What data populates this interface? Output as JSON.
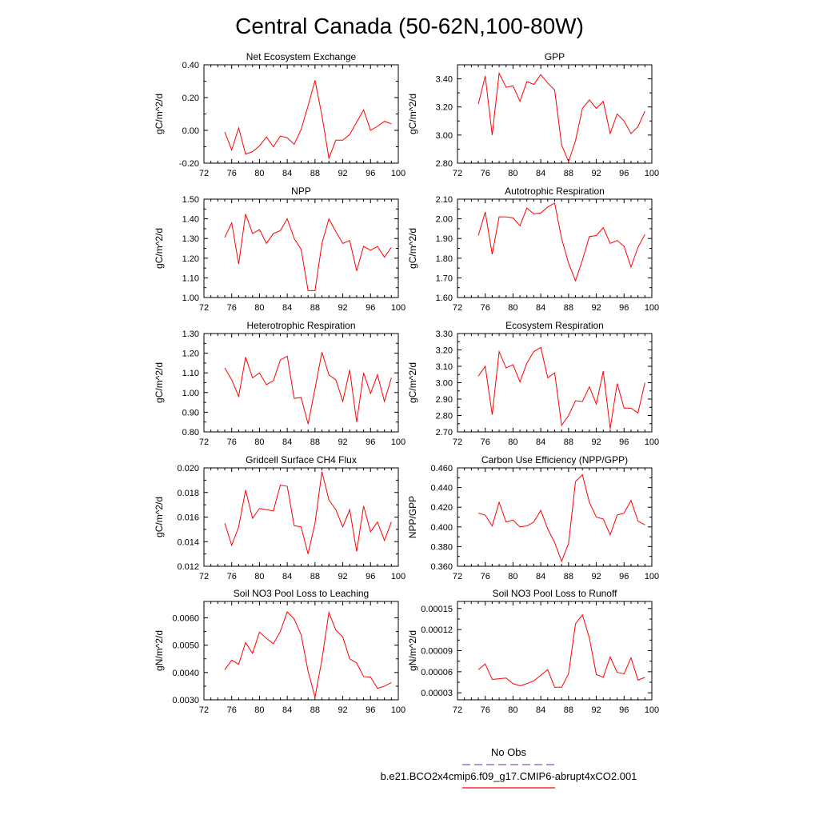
{
  "title": "Central Canada (50-62N,100-80W)",
  "legend": {
    "obs_label": "No Obs",
    "obs_color": "#6666cc",
    "case_label": "b.e21.BCO2x4cmip6.f09_g17.CMIP6-abrupt4xCO2.001",
    "case_color": "#ff0000",
    "placement": "bottom-right"
  },
  "chart_data": [
    {
      "type": "line",
      "title": "Net Ecosystem Exchange",
      "ylabel": "gC/m^2/d",
      "xlim": [
        72,
        100
      ],
      "ylim": [
        -0.2,
        0.4
      ],
      "xticks": [
        "72",
        "76",
        "80",
        "84",
        "88",
        "92",
        "96",
        "100"
      ],
      "yticks": [
        "-0.20",
        "0.00",
        "0.20",
        "0.40"
      ],
      "yticks_values": [
        -0.2,
        0,
        0.2,
        0.4
      ],
      "grid": false,
      "x": [
        75,
        76,
        77,
        78,
        79,
        80,
        81,
        82,
        83,
        84,
        85,
        86,
        87,
        88,
        89,
        90,
        91,
        92,
        93,
        94,
        95,
        96,
        97,
        98,
        99
      ],
      "series": [
        {
          "color": "#ff0000",
          "values": [
            -0.01,
            -0.12,
            0.015,
            -0.145,
            -0.13,
            -0.095,
            -0.04,
            -0.1,
            -0.035,
            -0.045,
            -0.085,
            0.005,
            0.15,
            0.305,
            0.09,
            -0.17,
            -0.06,
            -0.06,
            -0.025,
            0.05,
            0.125,
            0.0,
            0.025,
            0.055,
            0.04
          ]
        }
      ]
    },
    {
      "type": "line",
      "title": "GPP",
      "ylabel": "gC/m^2/d",
      "xlim": [
        72,
        100
      ],
      "ylim": [
        2.8,
        3.5
      ],
      "xticks": [
        "72",
        "76",
        "80",
        "84",
        "88",
        "92",
        "96",
        "100"
      ],
      "yticks": [
        "2.80",
        "3.00",
        "3.20",
        "3.40"
      ],
      "yticks_values": [
        2.8,
        3.0,
        3.2,
        3.4
      ],
      "grid": false,
      "x": [
        75,
        76,
        77,
        78,
        79,
        80,
        81,
        82,
        83,
        84,
        85,
        86,
        87,
        88,
        89,
        90,
        91,
        92,
        93,
        94,
        95,
        96,
        97,
        98,
        99
      ],
      "series": [
        {
          "color": "#ff0000",
          "values": [
            3.22,
            3.42,
            3.0,
            3.44,
            3.34,
            3.35,
            3.24,
            3.38,
            3.36,
            3.43,
            3.37,
            3.32,
            2.93,
            2.81,
            2.96,
            3.19,
            3.25,
            3.19,
            3.24,
            3.01,
            3.15,
            3.1,
            3.01,
            3.06,
            3.17
          ]
        }
      ]
    },
    {
      "type": "line",
      "title": "NPP",
      "ylabel": "gC/m^2/d",
      "xlim": [
        72,
        100
      ],
      "ylim": [
        1.0,
        1.5
      ],
      "xticks": [
        "72",
        "76",
        "80",
        "84",
        "88",
        "92",
        "96",
        "100"
      ],
      "yticks": [
        "1.00",
        "1.10",
        "1.20",
        "1.30",
        "1.40",
        "1.50"
      ],
      "yticks_values": [
        1.0,
        1.1,
        1.2,
        1.3,
        1.4,
        1.5
      ],
      "grid": false,
      "x": [
        75,
        76,
        77,
        78,
        79,
        80,
        81,
        82,
        83,
        84,
        85,
        86,
        87,
        88,
        89,
        90,
        91,
        92,
        93,
        94,
        95,
        96,
        97,
        98,
        99
      ],
      "series": [
        {
          "color": "#ff0000",
          "values": [
            1.305,
            1.38,
            1.17,
            1.425,
            1.325,
            1.345,
            1.275,
            1.325,
            1.34,
            1.4,
            1.3,
            1.245,
            1.035,
            1.035,
            1.275,
            1.4,
            1.335,
            1.275,
            1.29,
            1.135,
            1.26,
            1.24,
            1.26,
            1.205,
            1.255
          ]
        }
      ]
    },
    {
      "type": "line",
      "title": "Autotrophic Respiration",
      "ylabel": "gC/m^2/d",
      "xlim": [
        72,
        100
      ],
      "ylim": [
        1.6,
        2.1
      ],
      "xticks": [
        "72",
        "76",
        "80",
        "84",
        "88",
        "92",
        "96",
        "100"
      ],
      "yticks": [
        "1.60",
        "1.70",
        "1.80",
        "1.90",
        "2.00",
        "2.10"
      ],
      "yticks_values": [
        1.6,
        1.7,
        1.8,
        1.9,
        2.0,
        2.1
      ],
      "grid": false,
      "x": [
        75,
        76,
        77,
        78,
        79,
        80,
        81,
        82,
        83,
        84,
        85,
        86,
        87,
        88,
        89,
        90,
        91,
        92,
        93,
        94,
        95,
        96,
        97,
        98,
        99
      ],
      "series": [
        {
          "color": "#ff0000",
          "values": [
            1.915,
            2.035,
            1.82,
            2.01,
            2.01,
            2.005,
            1.965,
            2.055,
            2.025,
            2.03,
            2.06,
            2.08,
            1.9,
            1.775,
            1.685,
            1.79,
            1.91,
            1.915,
            1.955,
            1.875,
            1.89,
            1.86,
            1.755,
            1.855,
            1.92
          ]
        }
      ]
    },
    {
      "type": "line",
      "title": "Heterotrophic Respiration",
      "ylabel": "gC/m^2/d",
      "xlim": [
        72,
        100
      ],
      "ylim": [
        0.8,
        1.3
      ],
      "xticks": [
        "72",
        "76",
        "80",
        "84",
        "88",
        "92",
        "96",
        "100"
      ],
      "yticks": [
        "0.80",
        "0.90",
        "1.00",
        "1.10",
        "1.20",
        "1.30"
      ],
      "yticks_values": [
        0.8,
        0.9,
        1.0,
        1.1,
        1.2,
        1.3
      ],
      "grid": false,
      "x": [
        75,
        76,
        77,
        78,
        79,
        80,
        81,
        82,
        83,
        84,
        85,
        86,
        87,
        88,
        89,
        90,
        91,
        92,
        93,
        94,
        95,
        96,
        97,
        98,
        99
      ],
      "series": [
        {
          "color": "#ff0000",
          "values": [
            1.125,
            1.065,
            0.98,
            1.18,
            1.075,
            1.1,
            1.04,
            1.06,
            1.165,
            1.185,
            0.97,
            0.975,
            0.84,
            1.02,
            1.205,
            1.09,
            1.065,
            0.955,
            1.115,
            0.85,
            1.1,
            0.995,
            1.09,
            0.955,
            1.075
          ]
        }
      ]
    },
    {
      "type": "line",
      "title": "Ecosystem Respiration",
      "ylabel": "gC/m^2/d",
      "xlim": [
        72,
        100
      ],
      "ylim": [
        2.7,
        3.3
      ],
      "xticks": [
        "72",
        "76",
        "80",
        "84",
        "88",
        "92",
        "96",
        "100"
      ],
      "yticks": [
        "2.70",
        "2.80",
        "2.90",
        "3.00",
        "3.10",
        "3.20",
        "3.30"
      ],
      "yticks_values": [
        2.7,
        2.8,
        2.9,
        3.0,
        3.1,
        3.2,
        3.3
      ],
      "grid": false,
      "x": [
        75,
        76,
        77,
        78,
        79,
        80,
        81,
        82,
        83,
        84,
        85,
        86,
        87,
        88,
        89,
        90,
        91,
        92,
        93,
        94,
        95,
        96,
        97,
        98,
        99
      ],
      "series": [
        {
          "color": "#ff0000",
          "values": [
            3.04,
            3.1,
            2.805,
            3.19,
            3.09,
            3.11,
            3.005,
            3.12,
            3.19,
            3.215,
            3.03,
            3.06,
            2.74,
            2.8,
            2.89,
            2.885,
            2.975,
            2.87,
            3.07,
            2.72,
            2.995,
            2.845,
            2.845,
            2.815,
            3.0
          ]
        }
      ]
    },
    {
      "type": "line",
      "title": "Gridcell Surface CH4 Flux",
      "ylabel": "gC/m^2/d",
      "xlim": [
        72,
        100
      ],
      "ylim": [
        0.012,
        0.02
      ],
      "xticks": [
        "72",
        "76",
        "80",
        "84",
        "88",
        "92",
        "96",
        "100"
      ],
      "yticks": [
        "0.012",
        "0.014",
        "0.016",
        "0.018",
        "0.020"
      ],
      "yticks_values": [
        0.012,
        0.014,
        0.016,
        0.018,
        0.02
      ],
      "grid": false,
      "x": [
        75,
        76,
        77,
        78,
        79,
        80,
        81,
        82,
        83,
        84,
        85,
        86,
        87,
        88,
        89,
        90,
        91,
        92,
        93,
        94,
        95,
        96,
        97,
        98,
        99
      ],
      "series": [
        {
          "color": "#ff0000",
          "values": [
            0.0155,
            0.0137,
            0.0152,
            0.0182,
            0.0159,
            0.0167,
            0.0166,
            0.0165,
            0.0186,
            0.0185,
            0.0153,
            0.0152,
            0.013,
            0.0155,
            0.0197,
            0.0174,
            0.0166,
            0.0152,
            0.0166,
            0.0132,
            0.0169,
            0.0148,
            0.0156,
            0.0141,
            0.0156
          ]
        }
      ]
    },
    {
      "type": "line",
      "title": "Carbon Use Efficiency (NPP/GPP)",
      "ylabel": "NPP/GPP",
      "xlim": [
        72,
        100
      ],
      "ylim": [
        0.36,
        0.46
      ],
      "xticks": [
        "72",
        "76",
        "80",
        "84",
        "88",
        "92",
        "96",
        "100"
      ],
      "yticks": [
        "0.360",
        "0.380",
        "0.400",
        "0.420",
        "0.440",
        "0.460"
      ],
      "yticks_values": [
        0.36,
        0.38,
        0.4,
        0.42,
        0.44,
        0.46
      ],
      "grid": false,
      "x": [
        75,
        76,
        77,
        78,
        79,
        80,
        81,
        82,
        83,
        84,
        85,
        86,
        87,
        88,
        89,
        90,
        91,
        92,
        93,
        94,
        95,
        96,
        97,
        98,
        99
      ],
      "series": [
        {
          "color": "#ff0000",
          "values": [
            0.414,
            0.412,
            0.401,
            0.425,
            0.405,
            0.407,
            0.4,
            0.401,
            0.405,
            0.417,
            0.398,
            0.384,
            0.365,
            0.383,
            0.446,
            0.453,
            0.425,
            0.41,
            0.408,
            0.392,
            0.412,
            0.414,
            0.427,
            0.406,
            0.402
          ]
        }
      ]
    },
    {
      "type": "line",
      "title": "Soil NO3 Pool Loss to Leaching",
      "ylabel": "gN/m^2/d",
      "xlim": [
        72,
        100
      ],
      "ylim": [
        0.003,
        0.0066
      ],
      "xticks": [
        "72",
        "76",
        "80",
        "84",
        "88",
        "92",
        "96",
        "100"
      ],
      "yticks": [
        "0.0030",
        "0.0040",
        "0.0050",
        "0.0060"
      ],
      "yticks_values": [
        0.003,
        0.004,
        0.005,
        0.006
      ],
      "grid": false,
      "x": [
        75,
        76,
        77,
        78,
        79,
        80,
        81,
        82,
        83,
        84,
        85,
        86,
        87,
        88,
        89,
        90,
        91,
        92,
        93,
        94,
        95,
        96,
        97,
        98,
        99
      ],
      "series": [
        {
          "color": "#ff0000",
          "values": [
            0.0041,
            0.00445,
            0.0043,
            0.0051,
            0.0047,
            0.00548,
            0.00525,
            0.00505,
            0.0055,
            0.00622,
            0.00596,
            0.00538,
            0.00405,
            0.0031,
            0.00448,
            0.0062,
            0.00555,
            0.0053,
            0.0045,
            0.00435,
            0.00385,
            0.00383,
            0.00342,
            0.0035,
            0.00363
          ]
        }
      ]
    },
    {
      "type": "line",
      "title": "Soil NO3 Pool Loss to Runoff",
      "ylabel": "gN/m^2/d",
      "xlim": [
        72,
        100
      ],
      "ylim": [
        2e-05,
        0.00016
      ],
      "xticks": [
        "72",
        "76",
        "80",
        "84",
        "88",
        "92",
        "96",
        "100"
      ],
      "yticks": [
        "0.00003",
        "0.00006",
        "0.00009",
        "0.00012",
        "0.00015"
      ],
      "yticks_values": [
        3e-05,
        6e-05,
        9e-05,
        0.00012,
        0.00015
      ],
      "grid": false,
      "x": [
        75,
        76,
        77,
        78,
        79,
        80,
        81,
        82,
        83,
        84,
        85,
        86,
        87,
        88,
        89,
        90,
        91,
        92,
        93,
        94,
        95,
        96,
        97,
        98,
        99
      ],
      "series": [
        {
          "color": "#ff0000",
          "values": [
            6.3e-05,
            7.1e-05,
            4.9e-05,
            5e-05,
            5.1e-05,
            4.3e-05,
            4e-05,
            4.3e-05,
            4.7e-05,
            5.5e-05,
            6.3e-05,
            3.8e-05,
            3.8e-05,
            5.7e-05,
            0.000128,
            0.000141,
            0.000108,
            5.6e-05,
            5.2e-05,
            8.1e-05,
            5.9e-05,
            5.7e-05,
            8e-05,
            4.8e-05,
            5.2e-05
          ]
        }
      ]
    }
  ]
}
